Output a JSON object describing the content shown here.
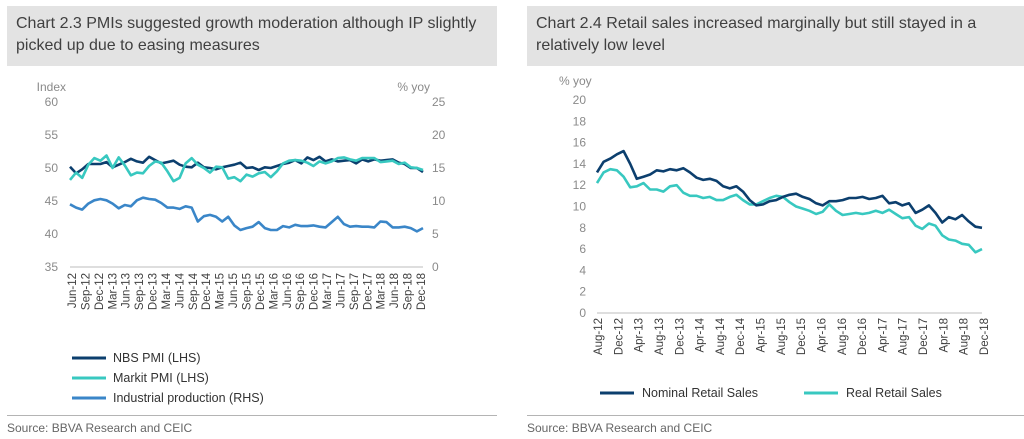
{
  "left": {
    "title": "Chart 2.3 PMIs suggested growth moderation although IP slightly picked up due to easing measures",
    "source": "Source: BBVA Research and CEIC",
    "chart_data": {
      "type": "line",
      "title": "Chart 2.3 PMIs suggested growth moderation although IP slightly picked up due to easing measures",
      "left_axis_label": "Index",
      "right_axis_label": "% yoy",
      "ylim_left": [
        35,
        60
      ],
      "yticks_left": [
        "35",
        "40",
        "45",
        "50",
        "55",
        "60"
      ],
      "ylim_right": [
        0,
        25
      ],
      "yticks_right": [
        "0",
        "5",
        "10",
        "15",
        "20",
        "25"
      ],
      "x_tick_labels": [
        "Jun-12",
        "Sep-12",
        "Dec-12",
        "Mar-13",
        "Jun-13",
        "Sep-13",
        "Dec-13",
        "Mar-14",
        "Jun-14",
        "Sep-14",
        "Dec-14",
        "Mar-15",
        "Jun-15",
        "Sep-15",
        "Dec-15",
        "Mar-16",
        "Jun-16",
        "Sep-16",
        "Dec-16",
        "Mar-17",
        "Jun-17",
        "Sep-17",
        "Dec-17",
        "Mar-18",
        "Jun-18",
        "Sep-18",
        "Dec-18"
      ],
      "series": [
        {
          "name": "NBS PMI (LHS)",
          "axis": "left",
          "color": "#0c3f6e",
          "values": [
            50.2,
            49.2,
            49.8,
            50.6,
            50.6,
            50.6,
            50.9,
            50.1,
            50.5,
            50.9,
            51.4,
            51.0,
            50.8,
            51.7,
            51.2,
            50.7,
            50.9,
            51.1,
            50.5,
            50.2,
            50.1,
            50.8,
            50.1,
            50.0,
            49.8,
            50.1,
            50.3,
            50.5,
            50.8,
            50.0,
            50.1,
            49.7,
            50.1,
            50.0,
            50.3,
            50.6,
            50.8,
            51.2,
            50.7,
            51.6,
            51.2,
            51.7,
            51.0,
            51.3,
            51.0,
            51.1,
            51.2,
            50.7,
            51.3,
            51.0,
            51.3,
            51.1,
            51.2,
            51.3,
            50.8,
            50.6,
            50.0,
            50.0,
            49.4
          ]
        },
        {
          "name": "Markit PMI (LHS)",
          "axis": "left",
          "color": "#38c8c0",
          "values": [
            48.2,
            49.3,
            48.5,
            50.5,
            51.5,
            51.1,
            51.9,
            50.0,
            51.6,
            50.4,
            48.9,
            49.3,
            49.2,
            50.3,
            51.0,
            50.8,
            49.5,
            48.0,
            48.5,
            50.7,
            51.5,
            50.5,
            50.0,
            49.3,
            50.2,
            50.1,
            48.4,
            48.6,
            48.0,
            49.0,
            48.7,
            49.2,
            49.4,
            48.6,
            49.5,
            50.7,
            51.1,
            51.2,
            51.1,
            50.8,
            50.3,
            51.0,
            50.7,
            51.0,
            51.5,
            51.6,
            51.3,
            51.1,
            51.5,
            51.5,
            51.5,
            50.9,
            51.0,
            51.1,
            50.6,
            50.8,
            50.1,
            50.0,
            49.7
          ]
        },
        {
          "name": "Industrial production (RHS)",
          "axis": "right",
          "color": "#3a86c8",
          "values": [
            9.5,
            9.0,
            8.7,
            9.6,
            10.1,
            10.3,
            10.1,
            9.6,
            8.9,
            9.4,
            9.2,
            10.1,
            10.5,
            10.3,
            10.2,
            9.7,
            9.0,
            9.0,
            8.8,
            9.2,
            9.0,
            6.9,
            7.7,
            7.9,
            7.6,
            6.9,
            7.6,
            6.3,
            5.6,
            5.9,
            6.1,
            6.8,
            5.9,
            5.6,
            5.6,
            6.2,
            6.0,
            6.4,
            6.2,
            6.2,
            6.3,
            6.1,
            6.0,
            6.8,
            7.6,
            6.5,
            6.1,
            6.2,
            6.1,
            6.1,
            6.0,
            6.9,
            6.8,
            6.0,
            6.0,
            6.1,
            5.9,
            5.4,
            5.9
          ]
        }
      ]
    }
  },
  "right": {
    "title": "Chart 2.4 Retail sales increased marginally but still stayed in a relatively low level",
    "source": "Source: BBVA Research and CEIC",
    "chart_data": {
      "type": "line",
      "title": "Chart 2.4 Retail sales increased marginally but still stayed in a relatively low level",
      "ylabel": "% yoy",
      "ylim": [
        0,
        20
      ],
      "yticks": [
        "0",
        "2",
        "4",
        "6",
        "8",
        "10",
        "12",
        "14",
        "16",
        "18",
        "20"
      ],
      "x_tick_labels": [
        "Aug-12",
        "Dec-12",
        "Apr-13",
        "Aug-13",
        "Dec-13",
        "Apr-14",
        "Aug-14",
        "Dec-14",
        "Apr-15",
        "Aug-15",
        "Dec-15",
        "Apr-16",
        "Aug-16",
        "Dec-16",
        "Apr-17",
        "Aug-17",
        "Dec-17",
        "Apr-18",
        "Aug-18",
        "Dec-18"
      ],
      "series": [
        {
          "name": "Nominal Retail Sales",
          "color": "#0c3f6e",
          "values": [
            13.2,
            14.2,
            14.5,
            14.9,
            15.2,
            14.0,
            12.6,
            12.8,
            13.0,
            13.4,
            13.3,
            13.5,
            13.4,
            13.6,
            13.2,
            12.7,
            12.5,
            12.6,
            12.4,
            11.9,
            11.7,
            11.9,
            11.4,
            10.6,
            10.1,
            10.2,
            10.5,
            10.6,
            10.9,
            11.1,
            11.2,
            10.9,
            10.7,
            10.3,
            10.1,
            10.5,
            10.5,
            10.6,
            10.8,
            10.8,
            10.9,
            10.7,
            10.8,
            11.0,
            10.3,
            10.4,
            10.1,
            10.3,
            9.4,
            9.7,
            10.1,
            9.4,
            8.5,
            9.0,
            8.8,
            9.2,
            8.6,
            8.1,
            8.0
          ]
        },
        {
          "name": "Real Retail Sales",
          "color": "#38c8c0",
          "values": [
            12.2,
            13.2,
            13.5,
            13.4,
            12.8,
            11.8,
            11.9,
            12.2,
            11.6,
            11.6,
            11.4,
            11.9,
            12.0,
            11.3,
            11.0,
            11.0,
            10.8,
            10.9,
            10.6,
            10.6,
            10.9,
            11.1,
            10.6,
            10.2,
            10.2,
            10.5,
            10.8,
            11.0,
            10.9,
            10.4,
            10.0,
            9.8,
            9.6,
            9.3,
            9.5,
            10.2,
            9.6,
            9.2,
            9.3,
            9.4,
            9.3,
            9.4,
            9.6,
            9.4,
            9.7,
            9.3,
            8.9,
            9.0,
            8.2,
            7.9,
            8.4,
            8.2,
            7.3,
            6.9,
            6.8,
            6.5,
            6.4,
            5.7,
            6.0
          ]
        }
      ]
    }
  }
}
